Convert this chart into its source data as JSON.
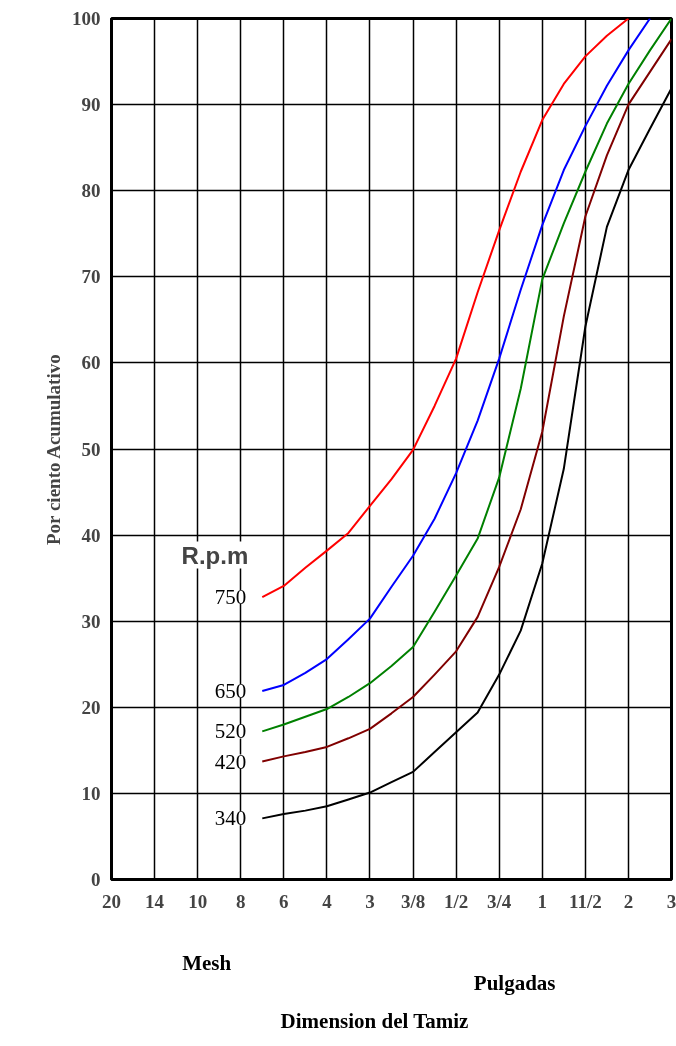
{
  "chart_data": {
    "type": "line",
    "xlabel": "Dimension del Tamiz",
    "ylabel": "Por ciento Acumulativo",
    "legend_title": "R.p.m",
    "annotations": [
      "Mesh",
      "Pulgadas"
    ],
    "categories": [
      "20",
      null,
      "14",
      null,
      "10",
      null,
      "8",
      null,
      "6",
      null,
      "4",
      null,
      "3",
      null,
      "3/8",
      null,
      "1/2",
      null,
      "3/4",
      null,
      "1",
      null,
      "11/2",
      null,
      "2",
      null,
      "3"
    ],
    "ylim": [
      0,
      100
    ],
    "yticks": [
      0,
      10,
      20,
      30,
      40,
      50,
      60,
      70,
      80,
      90,
      100
    ],
    "grid": true,
    "line_style": "solid",
    "series": [
      {
        "name": "750",
        "color": "#ff0000",
        "values": [
          null,
          null,
          null,
          null,
          null,
          null,
          null,
          32.8,
          34.1,
          36.2,
          38.2,
          40.25,
          43.4,
          46.5,
          49.9,
          55,
          60.5,
          68.2,
          75.4,
          82.2,
          88.2,
          92.4,
          95.6,
          98,
          100,
          null,
          null
        ]
      },
      {
        "name": "650",
        "color": "#0000ff",
        "values": [
          null,
          null,
          null,
          null,
          null,
          null,
          null,
          21.9,
          22.6,
          24,
          25.6,
          27.9,
          30.3,
          34,
          37.6,
          41.9,
          47.2,
          53.3,
          60.5,
          68.5,
          76,
          82.4,
          87.5,
          92.2,
          96.3,
          100,
          null
        ]
      },
      {
        "name": "520",
        "color": "#008000",
        "values": [
          null,
          null,
          null,
          null,
          null,
          null,
          null,
          17.2,
          18,
          18.9,
          19.8,
          21.2,
          22.8,
          24.8,
          27,
          31.1,
          35.3,
          39.6,
          46.7,
          57,
          69.7,
          76.2,
          82.2,
          87.8,
          92.4,
          96.3,
          100
        ]
      },
      {
        "name": "420",
        "color": "#800000",
        "values": [
          null,
          null,
          null,
          null,
          null,
          null,
          null,
          13.7,
          14.3,
          14.8,
          15.4,
          16.4,
          17.5,
          19.3,
          21.2,
          23.8,
          26.5,
          30.5,
          36.3,
          43,
          52,
          65.4,
          77,
          84.1,
          90,
          93.8,
          97.6
        ]
      },
      {
        "name": "340",
        "color": "#000000",
        "values": [
          null,
          null,
          null,
          null,
          null,
          null,
          null,
          7.1,
          7.6,
          8,
          8.5,
          9.3,
          10.1,
          11.3,
          12.5,
          14.8,
          17.1,
          19.4,
          23.8,
          28.9,
          36.7,
          47.7,
          64.2,
          75.8,
          82.4,
          87.2,
          91.9
        ]
      }
    ]
  }
}
